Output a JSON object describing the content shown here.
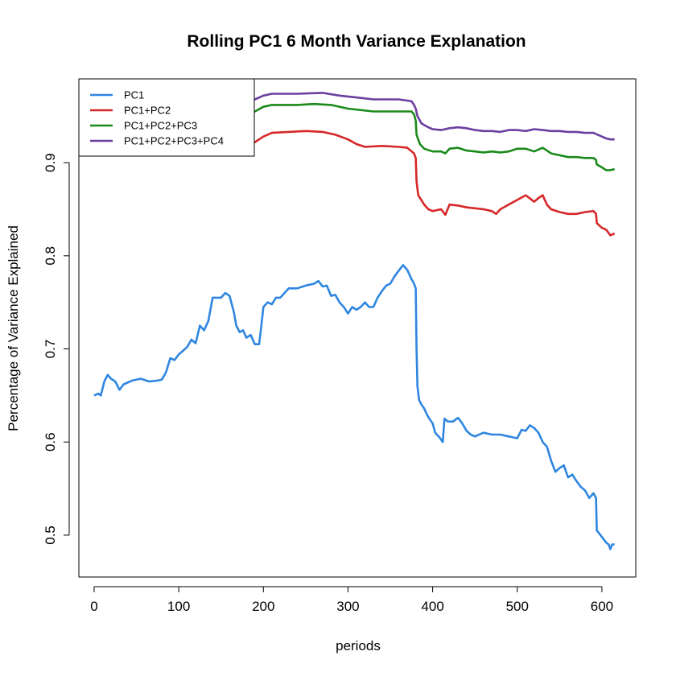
{
  "chart_data": {
    "type": "line",
    "title": "Rolling PC1 6 Month Variance Explanation",
    "xlabel": "periods",
    "ylabel": "Percentage of Variance Explained",
    "xlim": [
      -18,
      640
    ],
    "ylim": [
      0.455,
      0.99
    ],
    "xticks": [
      0,
      100,
      200,
      300,
      400,
      500,
      600
    ],
    "yticks": [
      0.5,
      0.6,
      0.7,
      0.8,
      0.9
    ],
    "grid": false,
    "legend_position": "top-left",
    "series": [
      {
        "name": "PC1",
        "color": "#2f86e0",
        "points": [
          [
            0,
            0.65
          ],
          [
            5,
            0.652
          ],
          [
            8,
            0.65
          ],
          [
            12,
            0.665
          ],
          [
            16,
            0.672
          ],
          [
            20,
            0.668
          ],
          [
            25,
            0.665
          ],
          [
            30,
            0.656
          ],
          [
            35,
            0.662
          ],
          [
            45,
            0.666
          ],
          [
            55,
            0.668
          ],
          [
            65,
            0.665
          ],
          [
            75,
            0.666
          ],
          [
            80,
            0.667
          ],
          [
            85,
            0.675
          ],
          [
            90,
            0.69
          ],
          [
            95,
            0.688
          ],
          [
            100,
            0.694
          ],
          [
            110,
            0.702
          ],
          [
            115,
            0.71
          ],
          [
            120,
            0.706
          ],
          [
            125,
            0.725
          ],
          [
            130,
            0.72
          ],
          [
            135,
            0.73
          ],
          [
            140,
            0.755
          ],
          [
            145,
            0.755
          ],
          [
            150,
            0.755
          ],
          [
            155,
            0.76
          ],
          [
            160,
            0.757
          ],
          [
            165,
            0.74
          ],
          [
            168,
            0.725
          ],
          [
            172,
            0.718
          ],
          [
            176,
            0.72
          ],
          [
            180,
            0.712
          ],
          [
            185,
            0.715
          ],
          [
            190,
            0.705
          ],
          [
            195,
            0.705
          ],
          [
            197,
            0.72
          ],
          [
            200,
            0.745
          ],
          [
            205,
            0.75
          ],
          [
            210,
            0.748
          ],
          [
            215,
            0.755
          ],
          [
            220,
            0.755
          ],
          [
            230,
            0.765
          ],
          [
            240,
            0.765
          ],
          [
            250,
            0.768
          ],
          [
            260,
            0.77
          ],
          [
            265,
            0.773
          ],
          [
            270,
            0.767
          ],
          [
            275,
            0.768
          ],
          [
            280,
            0.757
          ],
          [
            285,
            0.758
          ],
          [
            290,
            0.75
          ],
          [
            295,
            0.745
          ],
          [
            300,
            0.738
          ],
          [
            305,
            0.745
          ],
          [
            310,
            0.742
          ],
          [
            315,
            0.745
          ],
          [
            320,
            0.75
          ],
          [
            325,
            0.745
          ],
          [
            330,
            0.745
          ],
          [
            335,
            0.755
          ],
          [
            340,
            0.762
          ],
          [
            345,
            0.768
          ],
          [
            350,
            0.77
          ],
          [
            355,
            0.778
          ],
          [
            360,
            0.784
          ],
          [
            365,
            0.79
          ],
          [
            370,
            0.785
          ],
          [
            375,
            0.775
          ],
          [
            378,
            0.77
          ],
          [
            380,
            0.765
          ],
          [
            381,
            0.7
          ],
          [
            382,
            0.66
          ],
          [
            384,
            0.645
          ],
          [
            387,
            0.64
          ],
          [
            390,
            0.636
          ],
          [
            393,
            0.63
          ],
          [
            396,
            0.625
          ],
          [
            400,
            0.62
          ],
          [
            403,
            0.61
          ],
          [
            408,
            0.605
          ],
          [
            412,
            0.6
          ],
          [
            414,
            0.625
          ],
          [
            418,
            0.622
          ],
          [
            424,
            0.622
          ],
          [
            430,
            0.626
          ],
          [
            435,
            0.62
          ],
          [
            440,
            0.612
          ],
          [
            445,
            0.608
          ],
          [
            450,
            0.606
          ],
          [
            460,
            0.61
          ],
          [
            470,
            0.608
          ],
          [
            480,
            0.608
          ],
          [
            490,
            0.606
          ],
          [
            500,
            0.604
          ],
          [
            505,
            0.613
          ],
          [
            510,
            0.612
          ],
          [
            515,
            0.618
          ],
          [
            520,
            0.615
          ],
          [
            525,
            0.61
          ],
          [
            530,
            0.6
          ],
          [
            535,
            0.595
          ],
          [
            540,
            0.58
          ],
          [
            545,
            0.568
          ],
          [
            550,
            0.572
          ],
          [
            555,
            0.575
          ],
          [
            560,
            0.562
          ],
          [
            565,
            0.565
          ],
          [
            570,
            0.558
          ],
          [
            575,
            0.552
          ],
          [
            580,
            0.548
          ],
          [
            585,
            0.54
          ],
          [
            590,
            0.545
          ],
          [
            593,
            0.54
          ],
          [
            594,
            0.505
          ],
          [
            600,
            0.498
          ],
          [
            605,
            0.492
          ],
          [
            608,
            0.49
          ],
          [
            610,
            0.485
          ],
          [
            612,
            0.49
          ],
          [
            615,
            0.49
          ]
        ]
      },
      {
        "name": "PC1+PC2",
        "color": "#d62728",
        "points": [
          [
            0,
            0.965
          ],
          [
            60,
            0.965
          ],
          [
            120,
            0.955
          ],
          [
            160,
            0.935
          ],
          [
            180,
            0.925
          ],
          [
            190,
            0.922
          ],
          [
            200,
            0.928
          ],
          [
            205,
            0.93
          ],
          [
            210,
            0.932
          ],
          [
            230,
            0.933
          ],
          [
            250,
            0.934
          ],
          [
            270,
            0.933
          ],
          [
            285,
            0.93
          ],
          [
            300,
            0.925
          ],
          [
            310,
            0.92
          ],
          [
            320,
            0.917
          ],
          [
            340,
            0.918
          ],
          [
            360,
            0.917
          ],
          [
            370,
            0.916
          ],
          [
            378,
            0.91
          ],
          [
            380,
            0.905
          ],
          [
            381,
            0.88
          ],
          [
            383,
            0.865
          ],
          [
            390,
            0.855
          ],
          [
            395,
            0.85
          ],
          [
            400,
            0.848
          ],
          [
            410,
            0.85
          ],
          [
            415,
            0.844
          ],
          [
            420,
            0.855
          ],
          [
            430,
            0.854
          ],
          [
            440,
            0.852
          ],
          [
            450,
            0.851
          ],
          [
            460,
            0.85
          ],
          [
            470,
            0.848
          ],
          [
            475,
            0.845
          ],
          [
            480,
            0.85
          ],
          [
            490,
            0.855
          ],
          [
            500,
            0.86
          ],
          [
            510,
            0.865
          ],
          [
            520,
            0.858
          ],
          [
            525,
            0.862
          ],
          [
            530,
            0.865
          ],
          [
            535,
            0.855
          ],
          [
            540,
            0.85
          ],
          [
            550,
            0.847
          ],
          [
            560,
            0.845
          ],
          [
            570,
            0.845
          ],
          [
            580,
            0.847
          ],
          [
            590,
            0.848
          ],
          [
            593,
            0.845
          ],
          [
            594,
            0.835
          ],
          [
            600,
            0.83
          ],
          [
            605,
            0.828
          ],
          [
            610,
            0.822
          ],
          [
            615,
            0.824
          ]
        ]
      },
      {
        "name": "PC1+PC2+PC3",
        "color": "#1a8a1a",
        "points": [
          [
            0,
            0.965
          ],
          [
            100,
            0.965
          ],
          [
            150,
            0.96
          ],
          [
            190,
            0.955
          ],
          [
            200,
            0.96
          ],
          [
            210,
            0.962
          ],
          [
            240,
            0.962
          ],
          [
            260,
            0.963
          ],
          [
            280,
            0.962
          ],
          [
            300,
            0.958
          ],
          [
            330,
            0.955
          ],
          [
            360,
            0.955
          ],
          [
            375,
            0.955
          ],
          [
            378,
            0.952
          ],
          [
            380,
            0.945
          ],
          [
            381,
            0.93
          ],
          [
            385,
            0.92
          ],
          [
            390,
            0.915
          ],
          [
            400,
            0.912
          ],
          [
            410,
            0.912
          ],
          [
            415,
            0.91
          ],
          [
            420,
            0.915
          ],
          [
            430,
            0.916
          ],
          [
            440,
            0.913
          ],
          [
            450,
            0.912
          ],
          [
            460,
            0.911
          ],
          [
            470,
            0.912
          ],
          [
            480,
            0.911
          ],
          [
            490,
            0.912
          ],
          [
            500,
            0.915
          ],
          [
            510,
            0.915
          ],
          [
            520,
            0.912
          ],
          [
            530,
            0.916
          ],
          [
            540,
            0.91
          ],
          [
            550,
            0.908
          ],
          [
            560,
            0.906
          ],
          [
            570,
            0.906
          ],
          [
            580,
            0.905
          ],
          [
            590,
            0.905
          ],
          [
            593,
            0.903
          ],
          [
            594,
            0.898
          ],
          [
            600,
            0.895
          ],
          [
            605,
            0.892
          ],
          [
            610,
            0.892
          ],
          [
            615,
            0.893
          ]
        ]
      },
      {
        "name": "PC1+PC2+PC3+PC4",
        "color": "#6b3fa0",
        "points": [
          [
            0,
            0.97
          ],
          [
            150,
            0.97
          ],
          [
            190,
            0.968
          ],
          [
            200,
            0.972
          ],
          [
            210,
            0.974
          ],
          [
            240,
            0.974
          ],
          [
            270,
            0.975
          ],
          [
            290,
            0.972
          ],
          [
            310,
            0.97
          ],
          [
            330,
            0.968
          ],
          [
            360,
            0.968
          ],
          [
            375,
            0.966
          ],
          [
            378,
            0.962
          ],
          [
            380,
            0.958
          ],
          [
            382,
            0.95
          ],
          [
            387,
            0.942
          ],
          [
            395,
            0.938
          ],
          [
            400,
            0.936
          ],
          [
            410,
            0.935
          ],
          [
            420,
            0.937
          ],
          [
            430,
            0.938
          ],
          [
            440,
            0.937
          ],
          [
            450,
            0.935
          ],
          [
            460,
            0.934
          ],
          [
            470,
            0.934
          ],
          [
            480,
            0.933
          ],
          [
            490,
            0.935
          ],
          [
            500,
            0.935
          ],
          [
            510,
            0.934
          ],
          [
            520,
            0.936
          ],
          [
            530,
            0.935
          ],
          [
            540,
            0.934
          ],
          [
            550,
            0.934
          ],
          [
            560,
            0.933
          ],
          [
            570,
            0.933
          ],
          [
            580,
            0.932
          ],
          [
            590,
            0.932
          ],
          [
            595,
            0.93
          ],
          [
            600,
            0.928
          ],
          [
            605,
            0.926
          ],
          [
            610,
            0.925
          ],
          [
            615,
            0.925
          ]
        ]
      }
    ]
  }
}
